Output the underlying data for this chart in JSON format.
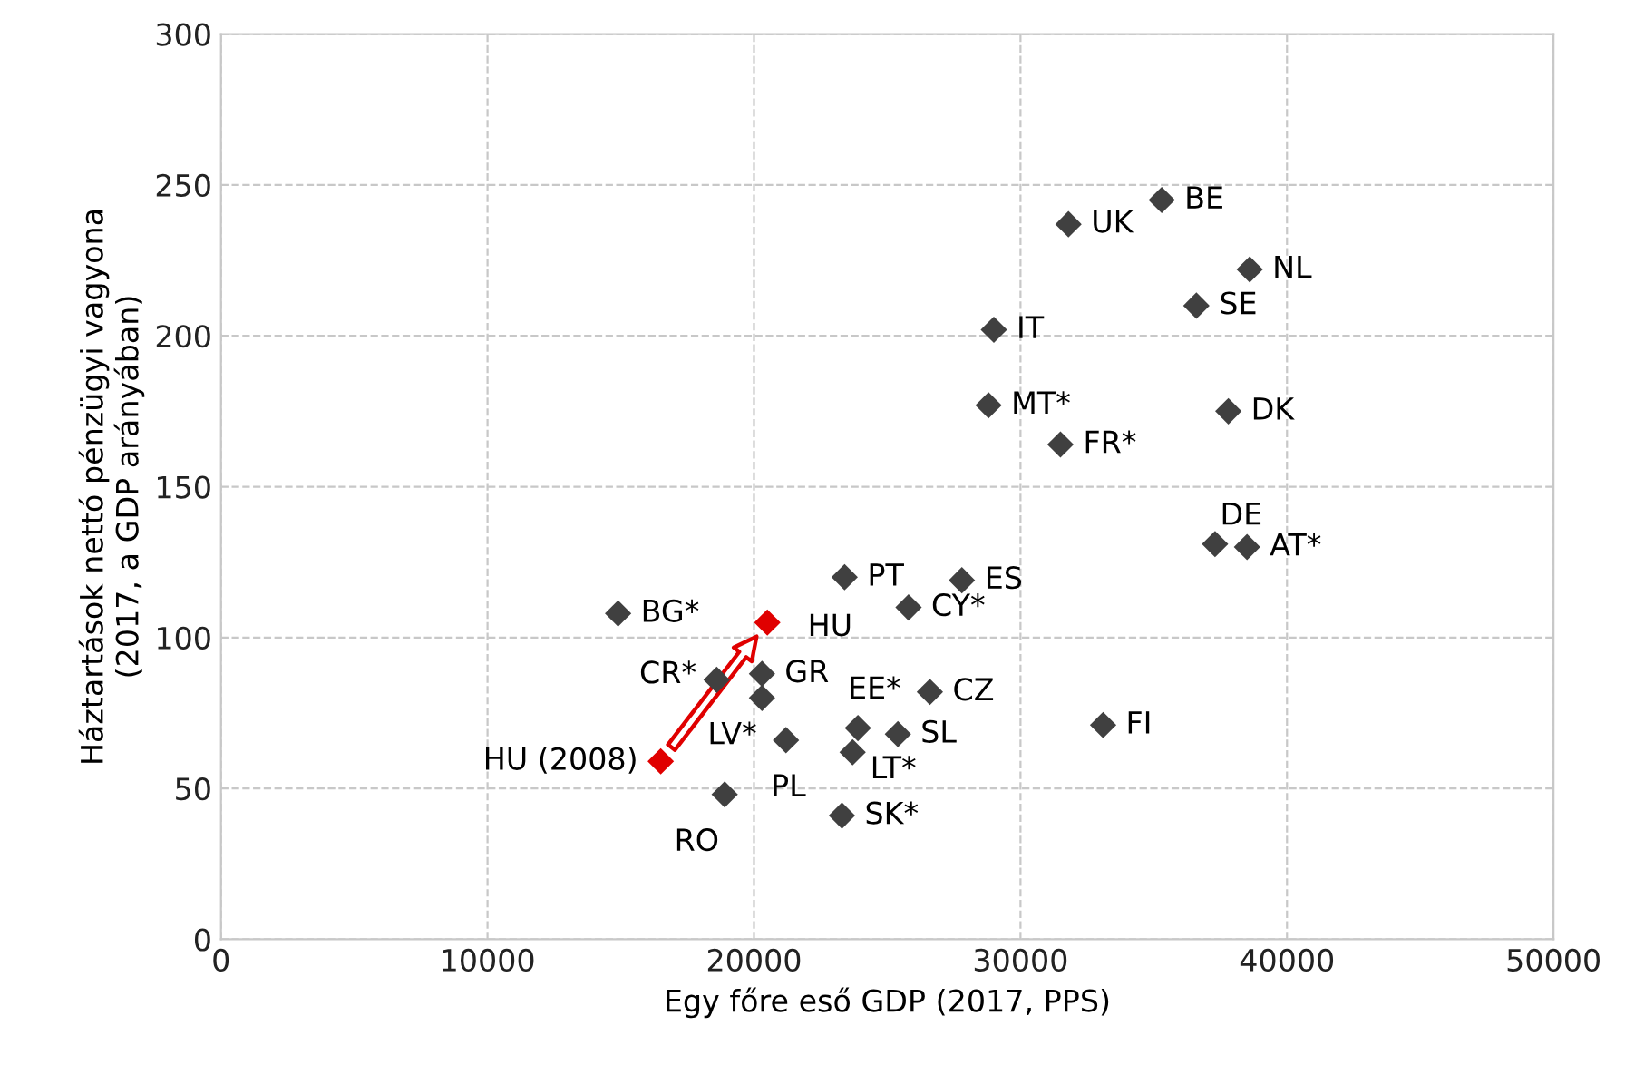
{
  "chart_data": {
    "type": "scatter",
    "xlabel": "Egy főre eső GDP (2017, PPS)",
    "ylabel": "Háztartások nettó pénzügyi vagyona\n(2017, a GDP arányában)",
    "xlim": [
      0,
      50000
    ],
    "xticks": [
      0,
      10000,
      20000,
      30000,
      40000,
      50000
    ],
    "ylim": [
      0,
      300
    ],
    "yticks": [
      0,
      50,
      100,
      150,
      200,
      250,
      300
    ],
    "grid": true,
    "marker": "diamond",
    "series": [
      {
        "color": "#404040",
        "x": [
          35300,
          31800,
          38600,
          36600,
          29000,
          28800,
          31500,
          37800,
          37300,
          38500,
          23400,
          27800,
          25800,
          14900,
          16500,
          20500,
          18600,
          20300,
          20300,
          23900,
          26600,
          25400,
          21200,
          23700,
          33100,
          18900,
          23300
        ],
        "values": [
          245,
          237,
          222,
          210,
          202,
          177,
          164,
          175,
          131,
          130,
          120,
          119,
          110,
          108,
          59,
          105,
          86,
          88,
          80,
          70,
          82,
          68,
          66,
          62,
          71,
          48,
          41
        ],
        "colors": [
          "#404040",
          "#404040",
          "#404040",
          "#404040",
          "#404040",
          "#404040",
          "#404040",
          "#404040",
          "#404040",
          "#404040",
          "#404040",
          "#404040",
          "#404040",
          "#404040",
          "#e00000",
          "#e00000",
          "#404040",
          "#404040",
          "#404040",
          "#404040",
          "#404040",
          "#404040",
          "#404040",
          "#404040",
          "#404040",
          "#404040",
          "#404040"
        ]
      }
    ],
    "annotations": [
      {
        "text": "BE",
        "x": 35300,
        "y": 245
      },
      {
        "text": "UK",
        "x": 31800,
        "y": 237
      },
      {
        "text": "NL",
        "x": 38600,
        "y": 222
      },
      {
        "text": "SE",
        "x": 36600,
        "y": 210
      },
      {
        "text": "IT",
        "x": 29000,
        "y": 202
      },
      {
        "text": "MT*",
        "x": 28800,
        "y": 177
      },
      {
        "text": "FR*",
        "x": 31500,
        "y": 164
      },
      {
        "text": "DK",
        "x": 37800,
        "y": 175
      },
      {
        "text": "DE",
        "x": 37300,
        "y": 131
      },
      {
        "text": "AT*",
        "x": 38500,
        "y": 130
      },
      {
        "text": "PT",
        "x": 23400,
        "y": 120
      },
      {
        "text": "ES",
        "x": 27800,
        "y": 119
      },
      {
        "text": "CY*",
        "x": 25800,
        "y": 110
      },
      {
        "text": "BG*",
        "x": 14900,
        "y": 108
      },
      {
        "text": "HU (2008)",
        "x": 16500,
        "y": 59
      },
      {
        "text": "HU",
        "x": 20500,
        "y": 105
      },
      {
        "text": "CR*",
        "x": 18600,
        "y": 86
      },
      {
        "text": "GR",
        "x": 20300,
        "y": 88
      },
      {
        "text": "LV*",
        "x": 20300,
        "y": 80
      },
      {
        "text": "EE*",
        "x": 23900,
        "y": 70
      },
      {
        "text": "CZ",
        "x": 26600,
        "y": 82
      },
      {
        "text": "SL",
        "x": 25400,
        "y": 68
      },
      {
        "text": "PL",
        "x": 21200,
        "y": 66
      },
      {
        "text": "LT*",
        "x": 23700,
        "y": 62
      },
      {
        "text": "FI",
        "x": 33100,
        "y": 71
      },
      {
        "text": "RO",
        "x": 18900,
        "y": 48
      },
      {
        "text": "SK*",
        "x": 23300,
        "y": 41
      }
    ]
  }
}
